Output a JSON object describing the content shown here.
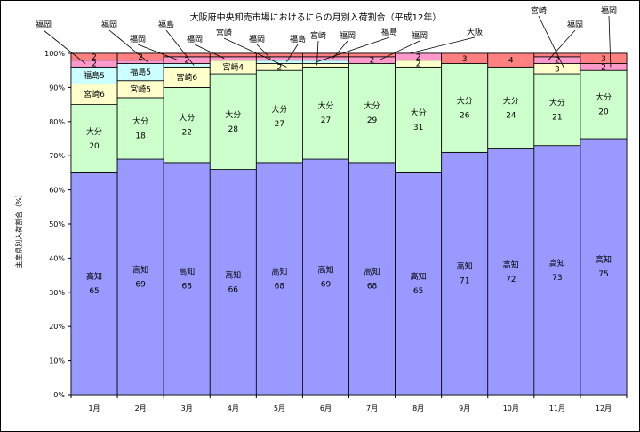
{
  "chart_data": {
    "type": "bar",
    "title": "大阪府中央卸売市場におけるにらの月別入荷割合（平成12年）",
    "xlabel": "",
    "ylabel": "主産県別入荷割合（%）",
    "ylim": [
      0,
      100
    ],
    "ytick_labels": [
      "0%",
      "10%",
      "20%",
      "30%",
      "40%",
      "50%",
      "60%",
      "70%",
      "80%",
      "90%",
      "100%"
    ],
    "categories": [
      "1月",
      "2月",
      "3月",
      "4月",
      "5月",
      "6月",
      "7月",
      "8月",
      "9月",
      "10月",
      "11月",
      "12月"
    ],
    "series": [
      {
        "name": "高知",
        "color": "#9999ff",
        "values": [
          65,
          69,
          68,
          66,
          68,
          69,
          68,
          65,
          71,
          72,
          73,
          75
        ]
      },
      {
        "name": "大分",
        "color": "#ccffcc",
        "values": [
          20,
          18,
          22,
          28,
          27,
          27,
          29,
          31,
          26,
          24,
          21,
          20
        ]
      },
      {
        "name": "宮崎",
        "color": "#ffffcc",
        "values": [
          6,
          5,
          6,
          4,
          2,
          1,
          0,
          2,
          0,
          0,
          3,
          0
        ]
      },
      {
        "name": "福島",
        "color": "#ccffff",
        "values": [
          5,
          5,
          1,
          0,
          1,
          1,
          0,
          0,
          0,
          0,
          0,
          0
        ]
      },
      {
        "name": "福岡",
        "color": "#ff99cc",
        "values": [
          2,
          1,
          2,
          1,
          1,
          1,
          2,
          2,
          0,
          0,
          2,
          2
        ]
      },
      {
        "name": "大阪",
        "color": "#ff8080",
        "values": [
          2,
          2,
          1,
          1,
          1,
          1,
          1,
          0,
          3,
          4,
          1,
          3
        ]
      }
    ],
    "inside_labels": [
      {
        "series": 0,
        "month": 0,
        "texts": [
          "高知",
          "65"
        ]
      },
      {
        "series": 0,
        "month": 1,
        "texts": [
          "高知",
          "69"
        ]
      },
      {
        "series": 0,
        "month": 2,
        "texts": [
          "高知",
          "68"
        ]
      },
      {
        "series": 0,
        "month": 3,
        "texts": [
          "高知",
          "66"
        ]
      },
      {
        "series": 0,
        "month": 4,
        "texts": [
          "高知",
          "68"
        ]
      },
      {
        "series": 0,
        "month": 5,
        "texts": [
          "高知",
          "69"
        ]
      },
      {
        "series": 0,
        "month": 6,
        "texts": [
          "高知",
          "68"
        ]
      },
      {
        "series": 0,
        "month": 7,
        "texts": [
          "高知",
          "65"
        ]
      },
      {
        "series": 0,
        "month": 8,
        "texts": [
          "高知",
          "71"
        ]
      },
      {
        "series": 0,
        "month": 9,
        "texts": [
          "高知",
          "72"
        ]
      },
      {
        "series": 0,
        "month": 10,
        "texts": [
          "高知",
          "73"
        ]
      },
      {
        "series": 0,
        "month": 11,
        "texts": [
          "高知",
          "75"
        ]
      },
      {
        "series": 1,
        "month": 0,
        "texts": [
          "大分",
          "20"
        ]
      },
      {
        "series": 1,
        "month": 1,
        "texts": [
          "大分",
          "18"
        ]
      },
      {
        "series": 1,
        "month": 2,
        "texts": [
          "大分",
          "22"
        ]
      },
      {
        "series": 1,
        "month": 3,
        "texts": [
          "大分",
          "28"
        ]
      },
      {
        "series": 1,
        "month": 4,
        "texts": [
          "大分",
          "27"
        ]
      },
      {
        "series": 1,
        "month": 5,
        "texts": [
          "大分",
          "27"
        ]
      },
      {
        "series": 1,
        "month": 6,
        "texts": [
          "大分",
          "29"
        ]
      },
      {
        "series": 1,
        "month": 7,
        "texts": [
          "大分",
          "31"
        ]
      },
      {
        "series": 1,
        "month": 8,
        "texts": [
          "大分",
          "26"
        ]
      },
      {
        "series": 1,
        "month": 9,
        "texts": [
          "大分",
          "24"
        ]
      },
      {
        "series": 1,
        "month": 10,
        "texts": [
          "大分",
          "21"
        ]
      },
      {
        "series": 1,
        "month": 11,
        "texts": [
          "大分",
          "20"
        ]
      },
      {
        "series": 2,
        "month": 0,
        "texts": [
          "宮崎6"
        ]
      },
      {
        "series": 2,
        "month": 1,
        "texts": [
          "宮崎5"
        ]
      },
      {
        "series": 2,
        "month": 2,
        "texts": [
          "宮崎6"
        ]
      },
      {
        "series": 2,
        "month": 3,
        "texts": [
          "宮崎4"
        ]
      },
      {
        "series": 2,
        "month": 4,
        "texts": [
          "2"
        ]
      },
      {
        "series": 2,
        "month": 7,
        "texts": [
          "2"
        ]
      },
      {
        "series": 2,
        "month": 10,
        "texts": [
          "3"
        ]
      },
      {
        "series": 3,
        "month": 0,
        "texts": [
          "福島5"
        ]
      },
      {
        "series": 3,
        "month": 1,
        "texts": [
          "福島5"
        ]
      },
      {
        "series": 4,
        "month": 0,
        "texts": [
          "2"
        ]
      },
      {
        "series": 4,
        "month": 2,
        "texts": [
          "2"
        ]
      },
      {
        "series": 4,
        "month": 6,
        "texts": [
          "2"
        ]
      },
      {
        "series": 4,
        "month": 7,
        "texts": [
          "2"
        ]
      },
      {
        "series": 4,
        "month": 10,
        "texts": [
          "2"
        ]
      },
      {
        "series": 4,
        "month": 11,
        "texts": [
          "2"
        ]
      },
      {
        "series": 5,
        "month": 0,
        "texts": [
          "2"
        ]
      },
      {
        "series": 5,
        "month": 1,
        "texts": [
          "2"
        ]
      },
      {
        "series": 5,
        "month": 8,
        "texts": [
          "3"
        ]
      },
      {
        "series": 5,
        "month": 9,
        "texts": [
          "4"
        ]
      },
      {
        "series": 5,
        "month": 11,
        "texts": [
          "3"
        ]
      }
    ],
    "callouts": [
      {
        "text": "福岡",
        "series": 4,
        "month": 0
      },
      {
        "text": "福岡",
        "series": 4,
        "month": 1
      },
      {
        "text": "福岡",
        "series": 4,
        "month": 2
      },
      {
        "text": "福島",
        "series": 3,
        "month": 2
      },
      {
        "text": "福岡",
        "series": 4,
        "month": 3
      },
      {
        "text": "宮崎",
        "series": 2,
        "month": 4
      },
      {
        "text": "福岡",
        "series": 4,
        "month": 4
      },
      {
        "text": "福島",
        "series": 3,
        "month": 4
      },
      {
        "text": "宮崎",
        "series": 2,
        "month": 5
      },
      {
        "text": "福岡",
        "series": 4,
        "month": 5
      },
      {
        "text": "福島",
        "series": 3,
        "month": 5
      },
      {
        "text": "福岡",
        "series": 4,
        "month": 6
      },
      {
        "text": "大阪",
        "series": 5,
        "month": 7
      },
      {
        "text": "宮崎",
        "series": 2,
        "month": 10
      },
      {
        "text": "福岡",
        "series": 4,
        "month": 10
      },
      {
        "text": "福岡",
        "series": 4,
        "month": 11
      }
    ]
  }
}
